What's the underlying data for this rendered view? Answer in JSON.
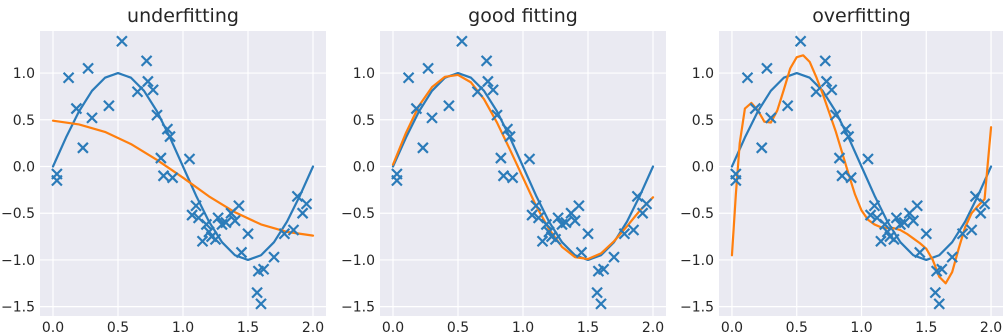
{
  "figure": {
    "background": "#ffffff"
  },
  "style": {
    "plot_bg": "#eaeaf2",
    "grid": "#ffffff",
    "true_color": "#2b7bb9",
    "fit_color": "#ff7f0e",
    "marker_color": "#2b7bb9"
  },
  "chart_data": [
    {
      "type": "line",
      "title": "underfitting",
      "xlabel": "",
      "ylabel": "",
      "xlim": [
        -0.1,
        2.1
      ],
      "ylim": [
        -1.6,
        1.45
      ],
      "xticks": [
        0.0,
        0.5,
        1.0,
        1.5,
        2.0
      ],
      "xtick_labels": [
        "0.0",
        "0.5",
        "1.0",
        "1.5",
        "2.0"
      ],
      "yticks": [
        1.0,
        0.5,
        0.0,
        -0.5,
        -1.0,
        -1.5
      ],
      "ytick_labels": [
        "1.0",
        "0.5",
        "0.0",
        "−0.5",
        "−1.0",
        "−1.5"
      ],
      "grid": true,
      "series": [
        {
          "kind": "line",
          "role": "true_function",
          "x": [
            0.0,
            0.1,
            0.2,
            0.3,
            0.4,
            0.5,
            0.6,
            0.7,
            0.8,
            0.9,
            1.0,
            1.1,
            1.2,
            1.3,
            1.4,
            1.5,
            1.6,
            1.7,
            1.8,
            1.9,
            2.0
          ],
          "y": [
            0.0,
            0.31,
            0.59,
            0.81,
            0.95,
            1.0,
            0.95,
            0.81,
            0.59,
            0.31,
            0.0,
            -0.31,
            -0.59,
            -0.81,
            -0.95,
            -1.0,
            -0.95,
            -0.81,
            -0.59,
            -0.31,
            0.0
          ]
        },
        {
          "kind": "line",
          "role": "fit",
          "x": [
            0.0,
            0.2,
            0.4,
            0.6,
            0.8,
            1.0,
            1.2,
            1.4,
            1.6,
            1.8,
            2.0
          ],
          "y": [
            0.49,
            0.45,
            0.37,
            0.24,
            0.07,
            -0.12,
            -0.32,
            -0.49,
            -0.62,
            -0.7,
            -0.74
          ]
        },
        {
          "kind": "scatter",
          "role": "samples",
          "marker": "x",
          "x": [
            0.03,
            0.03,
            0.12,
            0.18,
            0.23,
            0.27,
            0.3,
            0.43,
            0.53,
            0.65,
            0.72,
            0.73,
            0.77,
            0.8,
            0.83,
            0.85,
            0.88,
            0.9,
            0.92,
            1.05,
            1.07,
            1.1,
            1.12,
            1.15,
            1.18,
            1.2,
            1.22,
            1.25,
            1.27,
            1.3,
            1.33,
            1.37,
            1.4,
            1.43,
            1.45,
            1.5,
            1.57,
            1.58,
            1.6,
            1.62,
            1.7,
            1.78,
            1.85,
            1.88,
            1.92,
            1.95
          ],
          "y": [
            -0.15,
            -0.08,
            0.95,
            0.62,
            0.2,
            1.05,
            0.52,
            0.65,
            1.34,
            0.8,
            1.13,
            0.91,
            0.82,
            0.55,
            0.09,
            -0.1,
            0.4,
            0.32,
            -0.12,
            0.08,
            -0.52,
            -0.42,
            -0.55,
            -0.8,
            -0.62,
            -0.7,
            -0.75,
            -0.78,
            -0.55,
            -0.62,
            -0.6,
            -0.5,
            -0.58,
            -0.42,
            -0.92,
            -0.72,
            -1.35,
            -1.12,
            -1.47,
            -1.1,
            -0.97,
            -0.72,
            -0.68,
            -0.32,
            -0.5,
            -0.4
          ]
        }
      ]
    },
    {
      "type": "line",
      "title": "good fitting",
      "xlabel": "",
      "ylabel": "",
      "xlim": [
        -0.1,
        2.1
      ],
      "ylim": [
        -1.6,
        1.45
      ],
      "xticks": [
        0.0,
        0.5,
        1.0,
        1.5,
        2.0
      ],
      "xtick_labels": [
        "0.0",
        "0.5",
        "1.0",
        "1.5",
        "2.0"
      ],
      "yticks": [
        1.0,
        0.5,
        0.0,
        -0.5,
        -1.0,
        -1.5
      ],
      "ytick_labels": [
        "1.0",
        "0.5",
        "0.0",
        "−0.5",
        "−1.0",
        "−1.5"
      ],
      "grid": true,
      "series": [
        {
          "kind": "line",
          "role": "true_function",
          "x": [
            0.0,
            0.1,
            0.2,
            0.3,
            0.4,
            0.5,
            0.6,
            0.7,
            0.8,
            0.9,
            1.0,
            1.1,
            1.2,
            1.3,
            1.4,
            1.5,
            1.6,
            1.7,
            1.8,
            1.9,
            2.0
          ],
          "y": [
            0.0,
            0.31,
            0.59,
            0.81,
            0.95,
            1.0,
            0.95,
            0.81,
            0.59,
            0.31,
            0.0,
            -0.31,
            -0.59,
            -0.81,
            -0.95,
            -1.0,
            -0.95,
            -0.81,
            -0.59,
            -0.31,
            0.0
          ]
        },
        {
          "kind": "line",
          "role": "fit",
          "x": [
            0.0,
            0.1,
            0.2,
            0.3,
            0.4,
            0.5,
            0.6,
            0.7,
            0.8,
            0.9,
            1.0,
            1.1,
            1.2,
            1.3,
            1.4,
            1.5,
            1.6,
            1.7,
            1.8,
            1.9,
            2.0
          ],
          "y": [
            0.02,
            0.36,
            0.65,
            0.85,
            0.96,
            0.98,
            0.9,
            0.72,
            0.47,
            0.18,
            -0.12,
            -0.42,
            -0.67,
            -0.86,
            -0.97,
            -0.99,
            -0.93,
            -0.8,
            -0.64,
            -0.47,
            -0.33
          ]
        },
        {
          "kind": "scatter",
          "role": "samples",
          "marker": "x",
          "x": [
            0.03,
            0.03,
            0.12,
            0.18,
            0.23,
            0.27,
            0.3,
            0.43,
            0.53,
            0.65,
            0.72,
            0.73,
            0.77,
            0.8,
            0.83,
            0.85,
            0.88,
            0.9,
            0.92,
            1.05,
            1.07,
            1.1,
            1.12,
            1.15,
            1.18,
            1.2,
            1.22,
            1.25,
            1.27,
            1.3,
            1.33,
            1.37,
            1.4,
            1.43,
            1.45,
            1.5,
            1.57,
            1.58,
            1.6,
            1.62,
            1.7,
            1.78,
            1.85,
            1.88,
            1.92,
            1.95
          ],
          "y": [
            -0.15,
            -0.08,
            0.95,
            0.62,
            0.2,
            1.05,
            0.52,
            0.65,
            1.34,
            0.8,
            1.13,
            0.91,
            0.82,
            0.55,
            0.09,
            -0.1,
            0.4,
            0.32,
            -0.12,
            0.08,
            -0.52,
            -0.42,
            -0.55,
            -0.8,
            -0.62,
            -0.7,
            -0.75,
            -0.78,
            -0.55,
            -0.62,
            -0.6,
            -0.5,
            -0.58,
            -0.42,
            -0.92,
            -0.72,
            -1.35,
            -1.12,
            -1.47,
            -1.1,
            -0.97,
            -0.72,
            -0.68,
            -0.32,
            -0.5,
            -0.4
          ]
        }
      ]
    },
    {
      "type": "line",
      "title": "overfitting",
      "xlabel": "",
      "ylabel": "",
      "xlim": [
        -0.1,
        2.1
      ],
      "ylim": [
        -1.6,
        1.45
      ],
      "xticks": [
        0.0,
        0.5,
        1.0,
        1.5,
        2.0
      ],
      "xtick_labels": [
        "0.0",
        "0.5",
        "1.0",
        "1.5",
        "2.0"
      ],
      "yticks": [
        1.0,
        0.5,
        0.0,
        -0.5,
        -1.0,
        -1.5
      ],
      "ytick_labels": [
        "1.0",
        "0.5",
        "0.0",
        "−0.5",
        "−1.0",
        "−1.5"
      ],
      "grid": true,
      "series": [
        {
          "kind": "line",
          "role": "true_function",
          "x": [
            0.0,
            0.1,
            0.2,
            0.3,
            0.4,
            0.5,
            0.6,
            0.7,
            0.8,
            0.9,
            1.0,
            1.1,
            1.2,
            1.3,
            1.4,
            1.5,
            1.6,
            1.7,
            1.8,
            1.9,
            2.0
          ],
          "y": [
            0.0,
            0.31,
            0.59,
            0.81,
            0.95,
            1.0,
            0.95,
            0.81,
            0.59,
            0.31,
            0.0,
            -0.31,
            -0.59,
            -0.81,
            -0.95,
            -1.0,
            -0.95,
            -0.81,
            -0.59,
            -0.31,
            0.0
          ]
        },
        {
          "kind": "line",
          "role": "fit",
          "x": [
            0.0,
            0.03,
            0.06,
            0.1,
            0.15,
            0.2,
            0.25,
            0.3,
            0.35,
            0.4,
            0.45,
            0.5,
            0.55,
            0.6,
            0.65,
            0.7,
            0.75,
            0.8,
            0.85,
            0.9,
            0.95,
            1.0,
            1.05,
            1.1,
            1.15,
            1.2,
            1.25,
            1.3,
            1.35,
            1.4,
            1.45,
            1.5,
            1.55,
            1.6,
            1.65,
            1.7,
            1.75,
            1.8,
            1.85,
            1.9,
            1.95,
            2.0
          ],
          "y": [
            -0.95,
            -0.3,
            0.25,
            0.62,
            0.68,
            0.6,
            0.48,
            0.47,
            0.6,
            0.82,
            1.05,
            1.17,
            1.19,
            1.12,
            0.96,
            0.78,
            0.58,
            0.38,
            0.15,
            -0.08,
            -0.3,
            -0.47,
            -0.57,
            -0.62,
            -0.65,
            -0.66,
            -0.66,
            -0.68,
            -0.72,
            -0.77,
            -0.82,
            -0.88,
            -1.0,
            -1.18,
            -1.25,
            -1.13,
            -0.88,
            -0.65,
            -0.5,
            -0.42,
            -0.35,
            0.42
          ]
        },
        {
          "kind": "scatter",
          "role": "samples",
          "marker": "x",
          "x": [
            0.03,
            0.03,
            0.12,
            0.18,
            0.23,
            0.27,
            0.3,
            0.43,
            0.53,
            0.65,
            0.72,
            0.73,
            0.77,
            0.8,
            0.83,
            0.85,
            0.88,
            0.9,
            0.92,
            1.05,
            1.07,
            1.1,
            1.12,
            1.15,
            1.18,
            1.2,
            1.22,
            1.25,
            1.27,
            1.3,
            1.33,
            1.37,
            1.4,
            1.43,
            1.45,
            1.5,
            1.57,
            1.58,
            1.6,
            1.62,
            1.7,
            1.78,
            1.85,
            1.88,
            1.92,
            1.95
          ],
          "y": [
            -0.15,
            -0.08,
            0.95,
            0.62,
            0.2,
            1.05,
            0.52,
            0.65,
            1.34,
            0.8,
            1.13,
            0.91,
            0.82,
            0.55,
            0.09,
            -0.1,
            0.4,
            0.32,
            -0.12,
            0.08,
            -0.52,
            -0.42,
            -0.55,
            -0.8,
            -0.62,
            -0.7,
            -0.75,
            -0.78,
            -0.55,
            -0.62,
            -0.6,
            -0.5,
            -0.58,
            -0.42,
            -0.92,
            -0.72,
            -1.35,
            -1.12,
            -1.47,
            -1.1,
            -0.97,
            -0.72,
            -0.68,
            -0.32,
            -0.5,
            -0.4
          ]
        }
      ]
    }
  ]
}
